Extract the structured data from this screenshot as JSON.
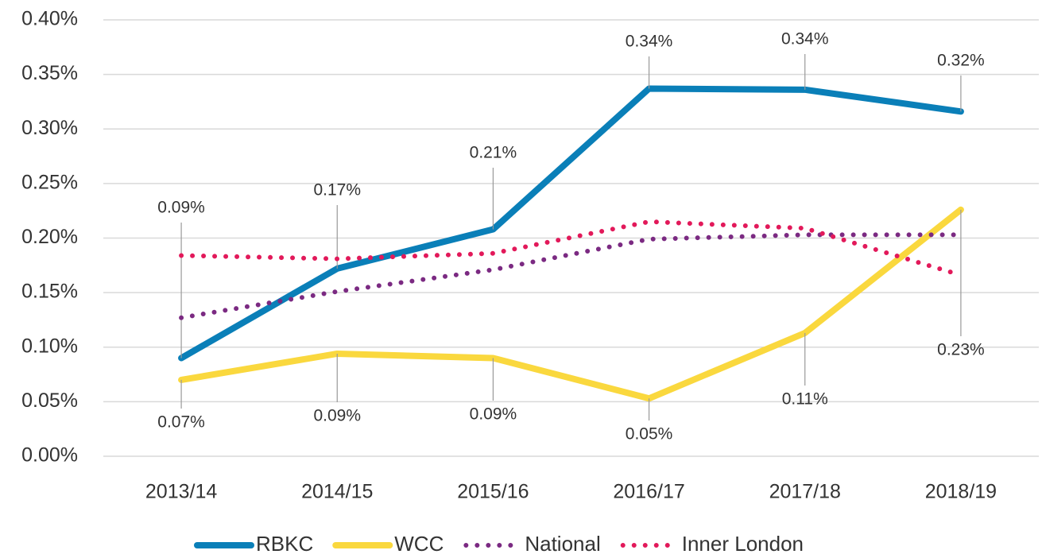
{
  "chart_data": {
    "type": "line",
    "categories": [
      "2013/14",
      "2014/15",
      "2015/16",
      "2016/17",
      "2017/18",
      "2018/19"
    ],
    "series": [
      {
        "name": "RBKC",
        "color": "#0a7fb8",
        "line_style": "solid",
        "values": [
          0.09,
          0.172,
          0.208,
          0.337,
          0.336,
          0.316
        ],
        "value_labels": [
          "0.09%",
          "0.17%",
          "0.21%",
          "0.34%",
          "0.34%",
          "0.32%"
        ]
      },
      {
        "name": "WCC",
        "color": "#fad83e",
        "line_style": "solid",
        "values": [
          0.07,
          0.094,
          0.09,
          0.053,
          0.113,
          0.226
        ],
        "value_labels": [
          "0.07%",
          "0.09%",
          "0.09%",
          "0.05%",
          "0.11%",
          "0.23%"
        ]
      },
      {
        "name": "National",
        "color": "#7b2a82",
        "line_style": "dotted",
        "values": [
          0.127,
          0.151,
          0.171,
          0.199,
          0.203,
          0.203
        ]
      },
      {
        "name": "Inner London",
        "color": "#e2195a",
        "line_style": "dotted",
        "values": [
          0.184,
          0.181,
          0.186,
          0.215,
          0.209,
          0.166
        ]
      }
    ],
    "ylim": [
      0,
      0.4
    ],
    "yticks": [
      {
        "value": 0,
        "label": "0.00%"
      },
      {
        "value": 0.05,
        "label": "0.05%"
      },
      {
        "value": 0.1,
        "label": "0.10%"
      },
      {
        "value": 0.15,
        "label": "0.15%"
      },
      {
        "value": 0.2,
        "label": "0.20%"
      },
      {
        "value": 0.25,
        "label": "0.25%"
      },
      {
        "value": 0.3,
        "label": "0.30%"
      },
      {
        "value": 0.35,
        "label": "0.35%"
      },
      {
        "value": 0.4,
        "label": "0.40%"
      }
    ],
    "grid": true
  }
}
